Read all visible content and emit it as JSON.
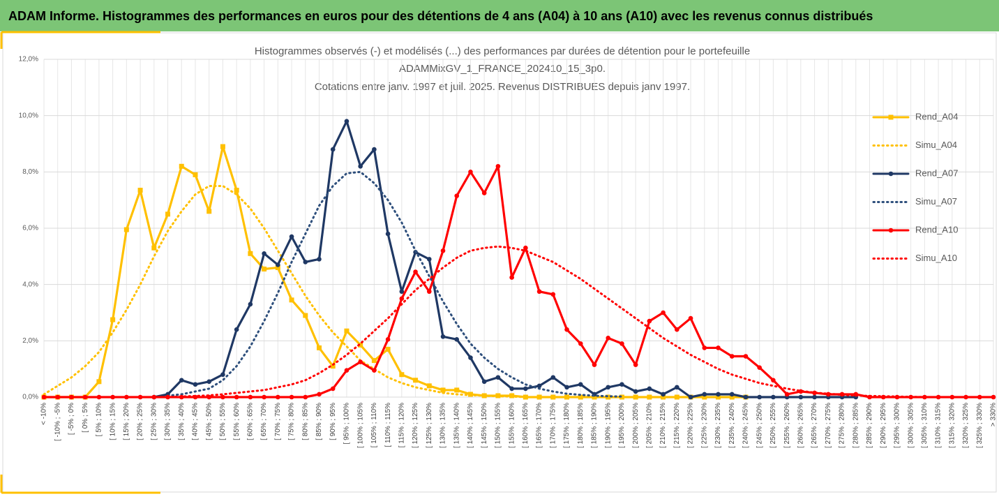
{
  "header": {
    "title": "ADAM Informe. Histogrammes des performances en euros pour des détentions de 4 ans (A04) à 10 ans (A10) avec les revenus connus distribués"
  },
  "chart_data": {
    "type": "line",
    "title": [
      "Histogrammes observés (-) et modélisés (...) des performances par durées de détention pour le portefeuille",
      "ADAMMixGV_1_FRANCE_202410_15_3p0.",
      "Cotations entre janv. 1997 et juil. 2025. Revenus DISTRIBUES depuis janv 1997."
    ],
    "categories": [
      "< -10%",
      "[ -10% ; -5%",
      "[ -5% ; 0%",
      "[ 0% ; 5%",
      "[ 5% ; 10%",
      "[ 10% ; 15%",
      "[ 15% ; 20%",
      "[ 20% ; 25%",
      "[ 25% ; 30%",
      "[ 30% ; 35%",
      "[ 35% ; 40%",
      "[ 40% ; 45%",
      "[ 45% ; 50%",
      "[ 50% ; 55%",
      "[ 55% ; 60%",
      "[ 60% ; 65%",
      "[ 65% ; 70%",
      "[ 70% ; 75%",
      "[ 75% ; 80%",
      "[ 80% ; 85%",
      "[ 85% ; 90%",
      "[ 90% ; 95%",
      "[ 95% ; 100%",
      "[ 100% ; 105%",
      "[ 105% ; 110%",
      "[ 110% ; 115%",
      "[ 115% ; 120%",
      "[ 120% ; 125%",
      "[ 125% ; 130%",
      "[ 130% ; 135%",
      "[ 135% ; 140%",
      "[ 140% ; 145%",
      "[ 145% ; 150%",
      "[ 150% ; 155%",
      "[ 155% ; 160%",
      "[ 160% ; 165%",
      "[ 165% ; 170%",
      "[ 170% ; 175%",
      "[ 175% ; 180%",
      "[ 180% ; 185%",
      "[ 185% ; 190%",
      "[ 190% ; 195%",
      "[ 195% ; 200%",
      "[ 200% ; 205%",
      "[ 205% ; 210%",
      "[ 210% ; 215%",
      "[ 215% ; 220%",
      "[ 220% ; 225%",
      "[ 225% ; 230%",
      "[ 230% ; 235%",
      "[ 235% ; 240%",
      "[ 240% ; 245%",
      "[ 245% ; 250%",
      "[ 250% ; 255%",
      "[ 255% ; 260%",
      "[ 260% ; 265%",
      "[ 265% ; 270%",
      "[ 270% ; 275%",
      "[ 275% ; 280%",
      "[ 280% ; 285%",
      "[ 285% ; 290%",
      "[ 290% ; 295%",
      "[ 295% ; 300%",
      "[ 300% ; 305%",
      "[ 305% ; 310%",
      "[ 310% ; 315%",
      "[ 315% ; 320%",
      "[ 320% ; 325%",
      "[ 325% ; 330%",
      "> 330%"
    ],
    "series": [
      {
        "name": "Rend_A04",
        "color": "#ffc000",
        "dashed": false,
        "marker": "square",
        "values": [
          0,
          0,
          0,
          0,
          0.55,
          2.75,
          5.95,
          7.35,
          5.3,
          6.5,
          8.2,
          7.9,
          6.6,
          8.9,
          7.35,
          5.1,
          4.55,
          4.6,
          3.45,
          2.9,
          1.75,
          1.1,
          2.35,
          1.85,
          1.3,
          1.7,
          0.8,
          0.6,
          0.4,
          0.25,
          0.25,
          0.1,
          0.05,
          0.05,
          0.05,
          0,
          0,
          0,
          0,
          0,
          0,
          0,
          0,
          0,
          0,
          0,
          0,
          0,
          0,
          0,
          0,
          0,
          null,
          null,
          null,
          null,
          null,
          null,
          null,
          null,
          null,
          null,
          null,
          null,
          null,
          null,
          null,
          null,
          null,
          null
        ]
      },
      {
        "name": "Simu_A04",
        "color": "#ffc000",
        "dashed": true,
        "marker": null,
        "values": [
          0.1,
          0.4,
          0.7,
          1.1,
          1.6,
          2.3,
          3.1,
          4.0,
          5.0,
          5.9,
          6.6,
          7.2,
          7.5,
          7.5,
          7.2,
          6.7,
          6.0,
          5.2,
          4.4,
          3.6,
          2.9,
          2.3,
          1.8,
          1.3,
          1.0,
          0.7,
          0.5,
          0.35,
          0.25,
          0.15,
          0.1,
          0.07,
          0.05,
          0.03,
          0.02,
          0,
          0,
          0,
          0,
          0,
          0,
          0,
          0,
          0,
          0,
          0,
          0,
          0,
          0,
          0,
          0,
          null,
          null,
          null,
          null,
          null,
          null,
          null,
          null,
          null,
          null,
          null,
          null,
          null,
          null,
          null,
          null,
          null,
          null,
          null
        ]
      },
      {
        "name": "Rend_A07",
        "color": "#1f3864",
        "dashed": false,
        "marker": "circle",
        "values": [
          null,
          null,
          null,
          null,
          null,
          null,
          null,
          null,
          0,
          0.1,
          0.6,
          0.45,
          0.55,
          0.8,
          2.4,
          3.3,
          5.1,
          4.7,
          5.7,
          4.8,
          4.9,
          8.8,
          9.8,
          8.2,
          8.8,
          5.8,
          3.75,
          5.15,
          4.9,
          2.15,
          2.05,
          1.4,
          0.55,
          0.7,
          0.3,
          0.3,
          0.4,
          0.7,
          0.35,
          0.45,
          0.1,
          0.35,
          0.45,
          0.2,
          0.3,
          0.1,
          0.35,
          0,
          0.1,
          0.1,
          0.1,
          0,
          0,
          0,
          0,
          0,
          0,
          0,
          0,
          0,
          null,
          null,
          null,
          null,
          null,
          null,
          null,
          null,
          null,
          null
        ]
      },
      {
        "name": "Simu_A07",
        "color": "#2e4f7c",
        "dashed": true,
        "marker": null,
        "values": [
          null,
          null,
          null,
          null,
          null,
          null,
          null,
          null,
          null,
          0.05,
          0.1,
          0.2,
          0.3,
          0.6,
          1.1,
          1.8,
          2.7,
          3.7,
          4.8,
          5.8,
          6.8,
          7.5,
          7.95,
          8.0,
          7.6,
          7.0,
          6.2,
          5.2,
          4.3,
          3.4,
          2.6,
          1.9,
          1.4,
          1.0,
          0.7,
          0.45,
          0.3,
          0.2,
          0.12,
          0.08,
          0.05,
          0.03,
          0.02,
          null,
          null,
          null,
          null,
          null,
          null,
          null,
          null,
          null,
          null,
          null,
          null,
          null,
          null,
          null,
          null,
          null,
          null,
          null,
          null,
          null,
          null,
          null,
          null,
          null,
          null,
          null
        ]
      },
      {
        "name": "Rend_A10",
        "color": "#ff0000",
        "dashed": false,
        "marker": "circle",
        "values": [
          0,
          0,
          0,
          0,
          0,
          0,
          0,
          0,
          0,
          0,
          0,
          0,
          0,
          0,
          0,
          0,
          0,
          0,
          0,
          0,
          0.1,
          0.3,
          0.95,
          1.25,
          0.95,
          2.05,
          3.5,
          4.45,
          3.75,
          5.2,
          7.15,
          8.0,
          7.25,
          8.2,
          4.25,
          5.3,
          3.75,
          3.65,
          2.4,
          1.9,
          1.15,
          2.1,
          1.9,
          1.15,
          2.7,
          3.0,
          2.4,
          2.8,
          1.75,
          1.75,
          1.45,
          1.45,
          1.05,
          0.6,
          0.1,
          0.2,
          0.15,
          0.1,
          0.1,
          0.1,
          0,
          0,
          0,
          0,
          0,
          0,
          0,
          0,
          0,
          0
        ]
      },
      {
        "name": "Simu_A10",
        "color": "#ff0000",
        "dashed": true,
        "marker": null,
        "values": [
          0,
          0,
          0,
          0,
          0,
          0,
          0,
          0,
          0,
          0,
          0.02,
          0.04,
          0.06,
          0.1,
          0.15,
          0.2,
          0.25,
          0.35,
          0.45,
          0.6,
          0.85,
          1.15,
          1.5,
          1.9,
          2.35,
          2.8,
          3.3,
          3.8,
          4.2,
          4.6,
          4.95,
          5.2,
          5.3,
          5.35,
          5.3,
          5.2,
          5.0,
          4.8,
          4.5,
          4.2,
          3.85,
          3.5,
          3.15,
          2.8,
          2.45,
          2.1,
          1.8,
          1.5,
          1.25,
          1.0,
          0.8,
          0.65,
          0.5,
          0.4,
          0.3,
          0.22,
          0.16,
          0.12,
          0.08,
          0.06,
          0.04,
          0.03,
          0.02,
          0.01,
          0,
          0,
          0,
          0,
          0,
          0
        ]
      }
    ],
    "ylim": [
      0,
      12
    ],
    "yticks": [
      {
        "value": 0,
        "label": "0,0%"
      },
      {
        "value": 2,
        "label": "2,0%"
      },
      {
        "value": 4,
        "label": "4,0%"
      },
      {
        "value": 6,
        "label": "6,0%"
      },
      {
        "value": 8,
        "label": "8,0%"
      },
      {
        "value": 10,
        "label": "10,0%"
      },
      {
        "value": 12,
        "label": "12,0%"
      }
    ],
    "grid": true,
    "legend": "right"
  }
}
